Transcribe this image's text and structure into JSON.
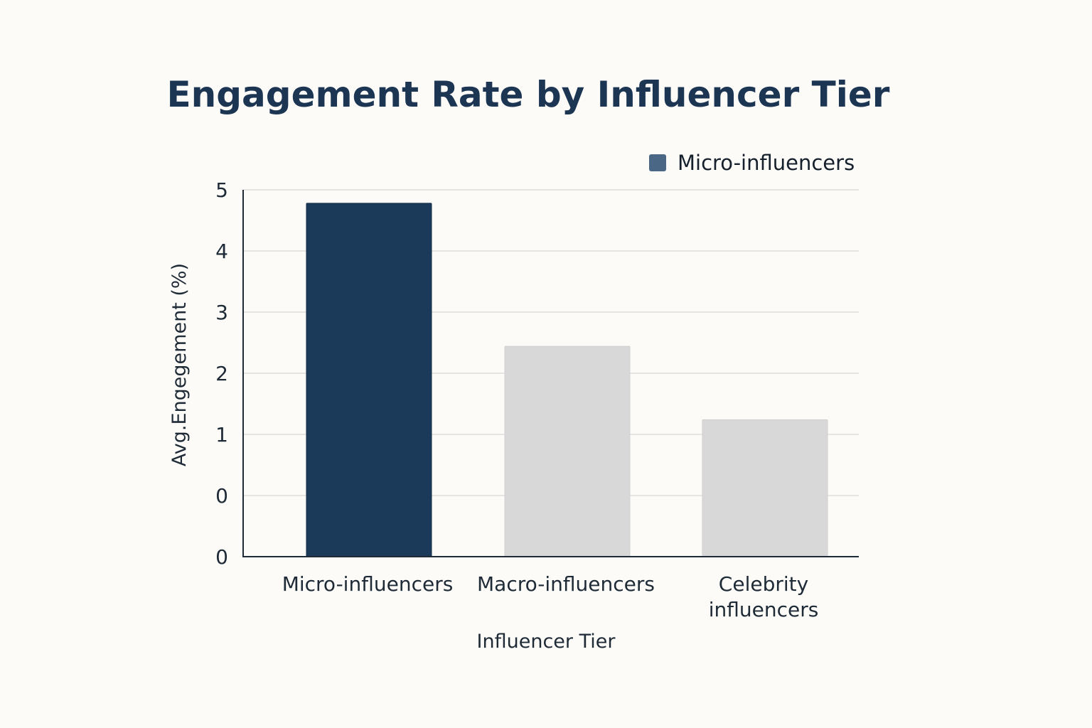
{
  "chart_data": {
    "type": "bar",
    "title": "Engagement Rate by Influencer Tier",
    "xlabel": "Influencer Tier",
    "ylabel": "Avg.Engegement (%)",
    "categories": [
      [
        "Micro-influencers"
      ],
      [
        "Macro-influencers"
      ],
      [
        "Celebrity",
        "influencers"
      ]
    ],
    "values": [
      4.78,
      2.44,
      1.24
    ],
    "y_tick_labels": [
      "5",
      "4",
      "3",
      "2",
      "1",
      "0",
      "0"
    ],
    "ylim": [
      0,
      5
    ],
    "grid": true,
    "legend": {
      "placement": "top-right",
      "entries": [
        "Micro-influencers"
      ]
    },
    "colors": {
      "highlight": "#1b3a5a",
      "other": "#d8d8d9",
      "legend_swatch": "#4a6785",
      "title": "#1b3553",
      "grid": "#dedede",
      "axis": "#1e2a36",
      "background": "#fcfbf8"
    }
  }
}
